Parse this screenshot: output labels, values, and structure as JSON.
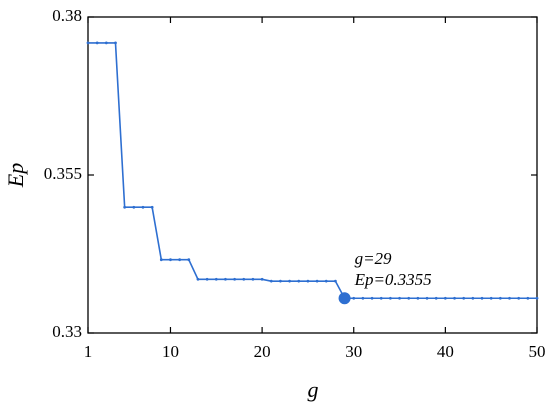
{
  "chart_data": {
    "type": "line",
    "x_label": "g",
    "y_label": "Ep",
    "x": [
      1,
      2,
      3,
      4,
      5,
      6,
      7,
      8,
      9,
      10,
      11,
      12,
      13,
      14,
      15,
      16,
      17,
      18,
      19,
      20,
      21,
      22,
      23,
      24,
      25,
      26,
      27,
      28,
      29,
      30,
      31,
      32,
      33,
      34,
      35,
      36,
      37,
      38,
      39,
      40,
      41,
      42,
      43,
      44,
      45,
      46,
      47,
      48,
      49,
      50
    ],
    "series": [
      {
        "name": "Ep",
        "color": "#2e6fd1",
        "values": [
          0.3759,
          0.3759,
          0.3759,
          0.3759,
          0.3499,
          0.3499,
          0.3499,
          0.3499,
          0.3416,
          0.3416,
          0.3416,
          0.3416,
          0.3385,
          0.3385,
          0.3385,
          0.3385,
          0.3385,
          0.3385,
          0.3385,
          0.3385,
          0.3382,
          0.3382,
          0.3382,
          0.3382,
          0.3382,
          0.3382,
          0.3382,
          0.3382,
          0.3355,
          0.3355,
          0.3355,
          0.3355,
          0.3355,
          0.3355,
          0.3355,
          0.3355,
          0.3355,
          0.3355,
          0.3355,
          0.3355,
          0.3355,
          0.3355,
          0.3355,
          0.3355,
          0.3355,
          0.3355,
          0.3355,
          0.3355,
          0.3355,
          0.3355
        ]
      }
    ],
    "highlight_x": 29,
    "annotations": [
      "g=29",
      "Ep=0.3355"
    ],
    "xlim": [
      1,
      50
    ],
    "xticks": [
      1,
      10,
      20,
      30,
      40,
      50
    ],
    "ylim": [
      0.33,
      0.38
    ],
    "yticks": [
      0.33,
      0.355,
      0.38
    ]
  }
}
